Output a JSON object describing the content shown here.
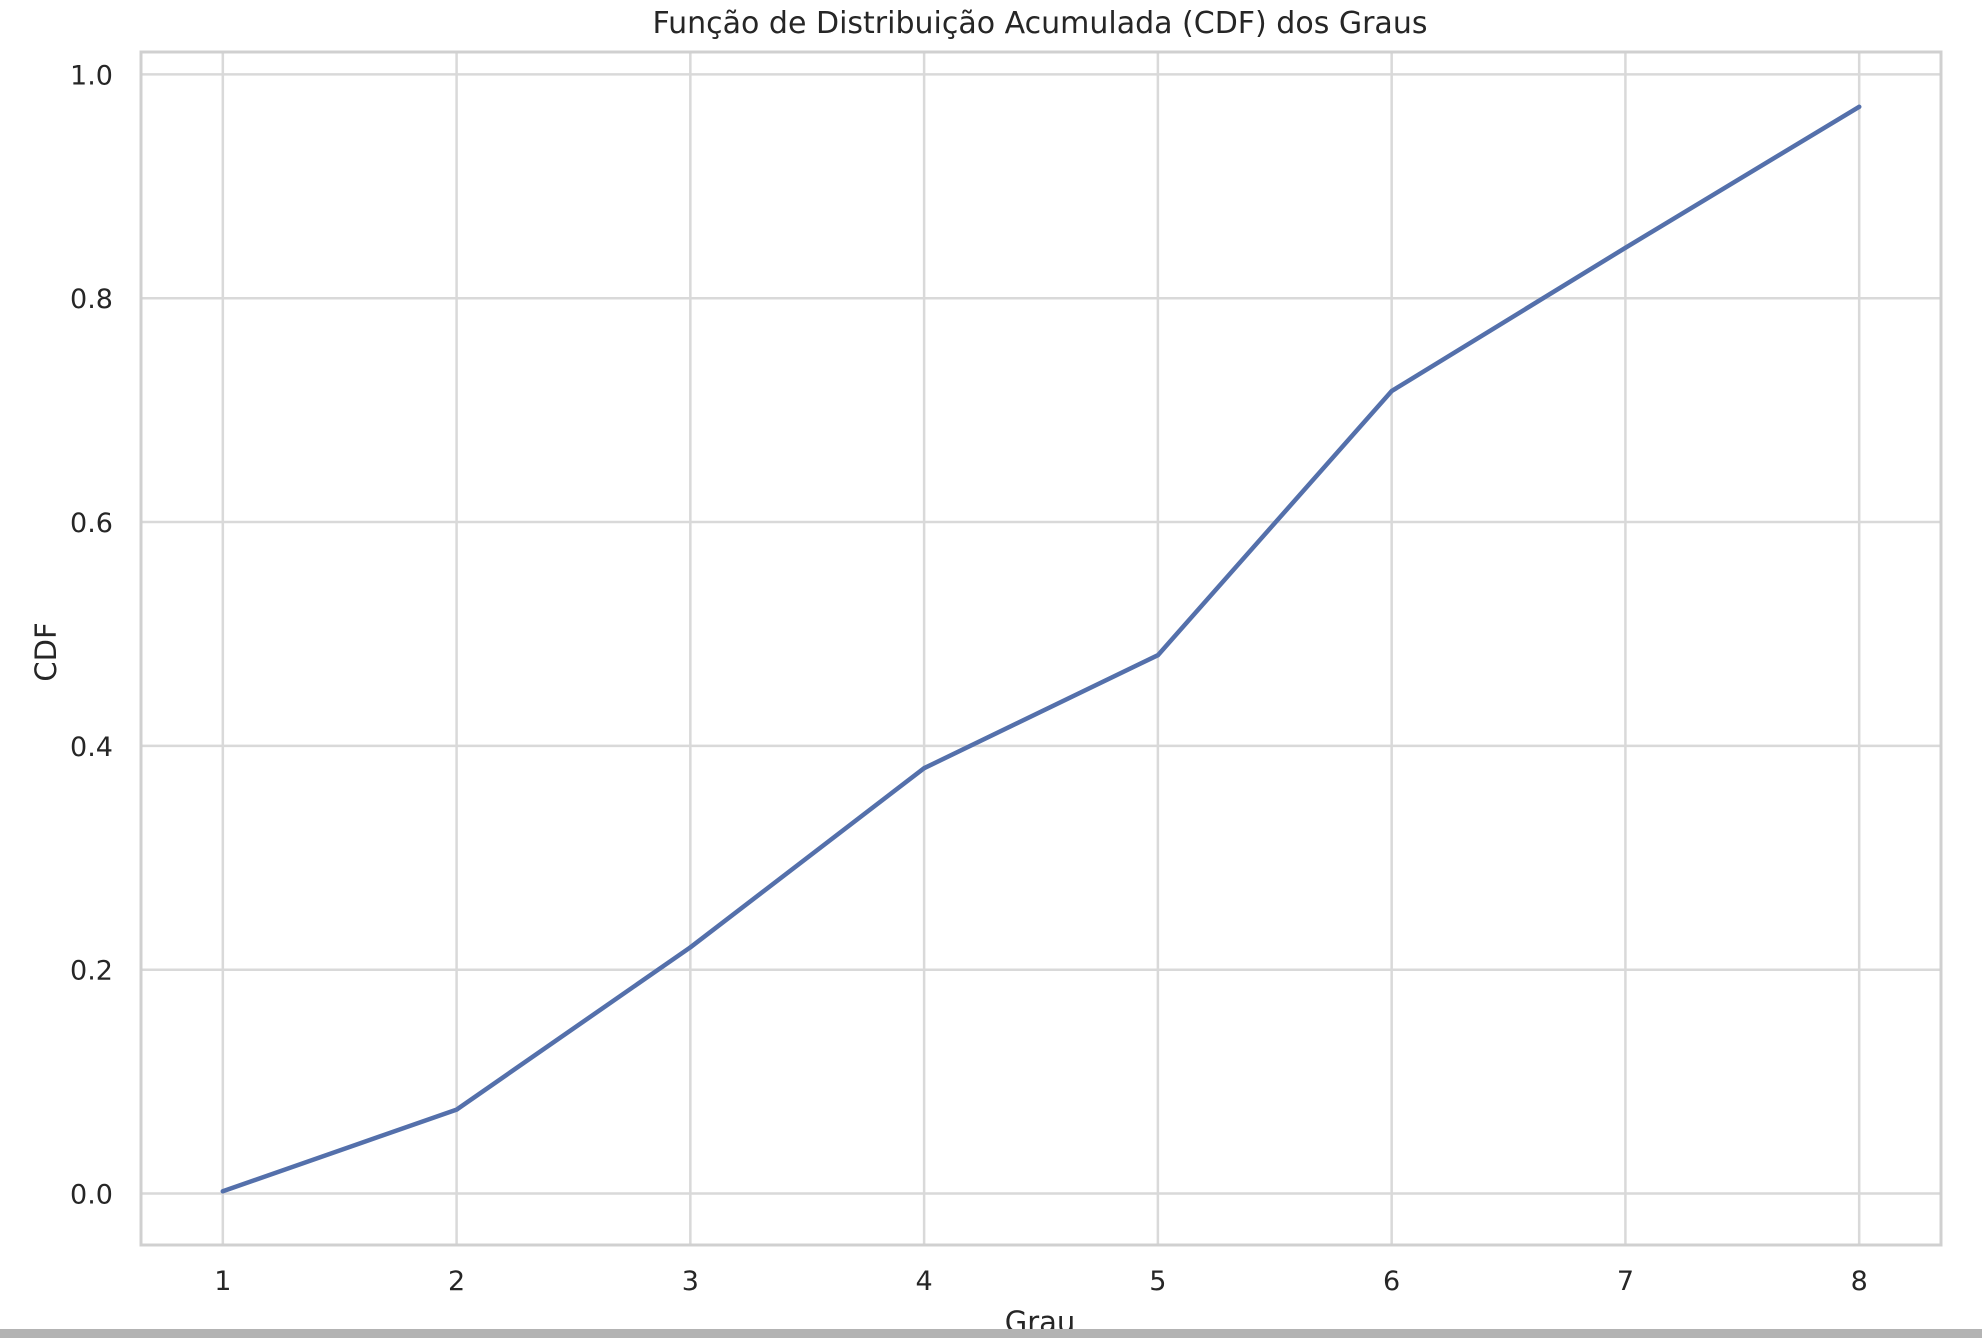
{
  "colors": {
    "line": "#5470ab",
    "grid": "#d9d9d9",
    "frame": "#d0d0d0",
    "text": "#262626",
    "background": "#ffffff"
  },
  "chart_data": {
    "type": "line",
    "title": "Função de Distribuição Acumulada (CDF) dos Graus",
    "xlabel": "Grau",
    "ylabel": "CDF",
    "xlim": [
      0.65,
      8.35
    ],
    "ylim": [
      -0.046,
      1.02
    ],
    "xticks": [
      1,
      2,
      3,
      4,
      5,
      6,
      7,
      8
    ],
    "yticks": [
      "0.0",
      "0.2",
      "0.4",
      "0.6",
      "0.8",
      "1.0"
    ],
    "grid": true,
    "legend": "none",
    "series": [
      {
        "x": [
          1,
          2,
          3,
          4,
          5,
          6,
          7,
          8
        ],
        "y": [
          0.002,
          0.075,
          0.22,
          0.38,
          0.481,
          0.717,
          0.845,
          0.971
        ]
      }
    ]
  }
}
